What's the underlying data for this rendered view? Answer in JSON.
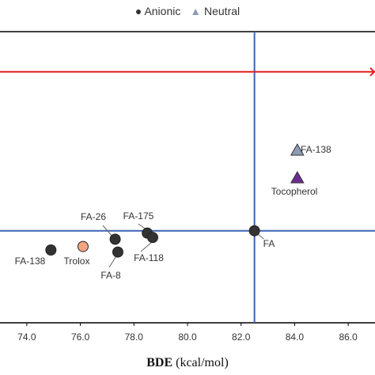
{
  "chart_data": {
    "type": "scatter",
    "xlabel_bold": "BDE",
    "xlabel_rest": "(kcal/mol)",
    "xlim": [
      73.0,
      87.0
    ],
    "ylim": [
      0.0,
      1.0
    ],
    "x_ticks": [
      "74.0",
      "76.0",
      "78.0",
      "80.0",
      "82.0",
      "84.0",
      "86.0"
    ],
    "x_tick_values": [
      74.0,
      76.0,
      78.0,
      80.0,
      82.0,
      84.0,
      86.0
    ],
    "grid": false,
    "legend_position": "top",
    "legend": [
      {
        "marker": "circle",
        "label": "Anionic",
        "color": "#333333"
      },
      {
        "marker": "triangle",
        "label": "Neutral",
        "color": "#8d9bb5"
      }
    ],
    "reference_lines": [
      {
        "orientation": "vertical",
        "x": 82.5,
        "color": "#3e63b5"
      },
      {
        "orientation": "horizontal",
        "y": 0.316,
        "color": "#3e63b5"
      },
      {
        "orientation": "horizontal",
        "y": 0.862,
        "color": "#e02020"
      }
    ],
    "points": [
      {
        "label": "FA-138",
        "x": 74.9,
        "y": 0.25,
        "marker": "circle",
        "color": "#333333"
      },
      {
        "label": "Trolox",
        "x": 76.1,
        "y": 0.262,
        "marker": "circle",
        "color": "#f4a582"
      },
      {
        "label": "FA-26",
        "x": 77.3,
        "y": 0.287,
        "marker": "circle",
        "color": "#333333"
      },
      {
        "label": "FA-8",
        "x": 77.4,
        "y": 0.243,
        "marker": "circle",
        "color": "#333333"
      },
      {
        "label": "FA-175",
        "x": 78.5,
        "y": 0.308,
        "marker": "circle",
        "color": "#333333"
      },
      {
        "label": "FA-118",
        "x": 78.7,
        "y": 0.293,
        "marker": "circle",
        "color": "#333333"
      },
      {
        "label": "FA",
        "x": 82.5,
        "y": 0.316,
        "marker": "circle",
        "color": "#333333"
      },
      {
        "label": "FA-138",
        "x": 84.1,
        "y": 0.592,
        "marker": "triangle",
        "color": "#8d9bb5"
      },
      {
        "label": "Tocopherol",
        "x": 84.1,
        "y": 0.497,
        "marker": "triangle",
        "color": "#6a2c91"
      }
    ]
  }
}
